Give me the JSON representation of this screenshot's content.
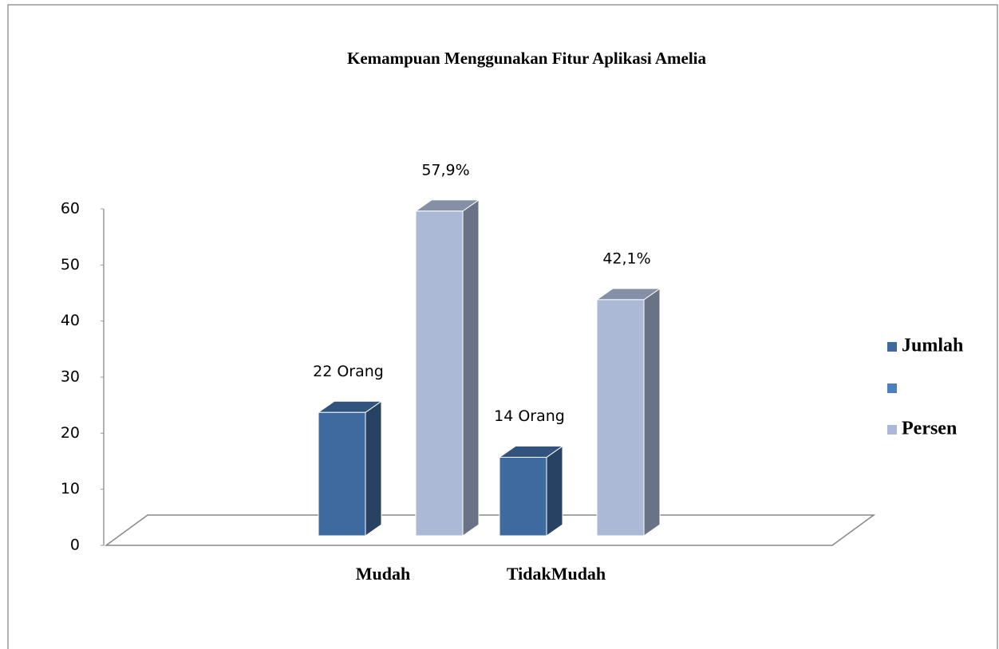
{
  "chart_data": {
    "type": "bar3d",
    "title": "Kemampuan Menggunakan Fitur  Aplikasi Amelia",
    "categories": [
      "Mudah",
      "TidakMudah"
    ],
    "series": [
      {
        "name": "Jumlah",
        "color": "#3f6aa0",
        "values": [
          22,
          14
        ],
        "value_labels": [
          "22 Orang",
          "14 Orang"
        ]
      },
      {
        "name": null,
        "color": "#4a80c0",
        "values": [
          null,
          null
        ]
      },
      {
        "name": "Persen",
        "color": "#abb9d6",
        "values": [
          57.9,
          42.1
        ],
        "value_labels": [
          "57,9%",
          "42,1%"
        ]
      }
    ],
    "ylim": [
      0,
      60
    ],
    "yticks": [
      0,
      10,
      20,
      30,
      40,
      50,
      60
    ],
    "legend": "right"
  }
}
